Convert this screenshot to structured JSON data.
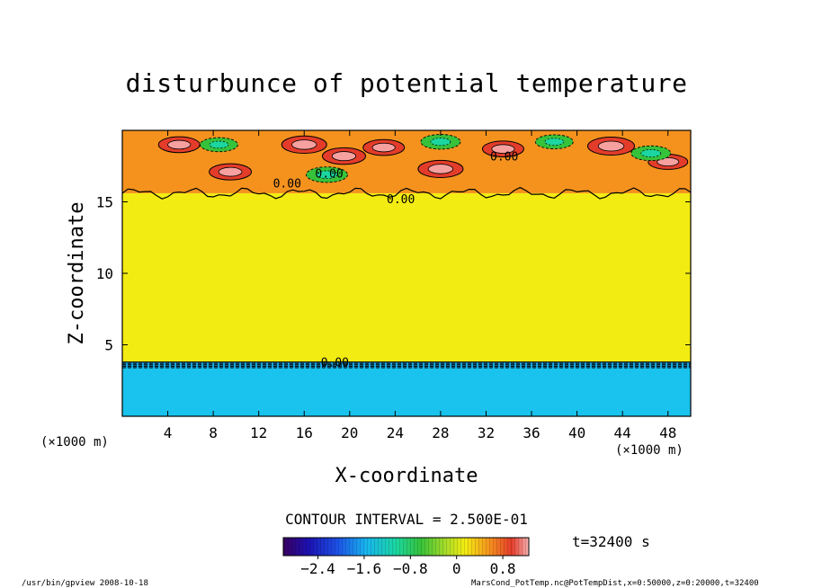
{
  "chart_data": {
    "type": "heatmap",
    "title": "disturbunce of potential temperature",
    "xlabel": "X-coordinate",
    "ylabel": "Z-coordinate",
    "x_unit": "(×1000 m)",
    "y_unit": "(×1000 m)",
    "xlim": [
      0,
      50
    ],
    "ylim": [
      0,
      20
    ],
    "x_ticks": [
      4,
      8,
      12,
      16,
      20,
      24,
      28,
      32,
      36,
      40,
      44,
      48
    ],
    "y_ticks": [
      5,
      10,
      15
    ],
    "contour_interval": "CONTOUR INTERVAL = 2.500E-01",
    "time_label": "t=32400 s",
    "contour_labels": [
      {
        "text": "0.00",
        "x": 33.6,
        "z": 17.9
      },
      {
        "text": "0.00",
        "x": 24.5,
        "z": 14.9
      },
      {
        "text": "0.00",
        "x": 14.5,
        "z": 16.0
      },
      {
        "text": "0.00",
        "x": 18.2,
        "z": 16.7
      },
      {
        "text": "0.00",
        "x": 18.7,
        "z": 3.5
      }
    ],
    "fields": {
      "lower_layer": {
        "z_range": [
          0,
          3.7
        ],
        "value": -1.7
      },
      "interface_z": 3.7,
      "middle_layer": {
        "z_range": [
          3.7,
          15.6
        ],
        "value": 0.1
      },
      "upper_layer": {
        "z_range": [
          15.6,
          20
        ],
        "value": 0.4
      },
      "warm_centers": [
        {
          "x": 5,
          "z": 19.0,
          "value": 0.7
        },
        {
          "x": 9.5,
          "z": 17.1,
          "value": 0.75
        },
        {
          "x": 16,
          "z": 19.0,
          "value": 0.9
        },
        {
          "x": 19.5,
          "z": 18.2,
          "value": 0.8
        },
        {
          "x": 23,
          "z": 18.8,
          "value": 0.7
        },
        {
          "x": 28,
          "z": 17.3,
          "value": 0.9
        },
        {
          "x": 33.5,
          "z": 18.7,
          "value": 0.7
        },
        {
          "x": 43,
          "z": 18.9,
          "value": 1.0
        },
        {
          "x": 48,
          "z": 17.8,
          "value": 0.6
        }
      ],
      "cool_centers": [
        {
          "x": 8.5,
          "z": 19.0,
          "value": -0.7
        },
        {
          "x": 18,
          "z": 16.9,
          "value": -0.9
        },
        {
          "x": 28,
          "z": 19.2,
          "value": -0.8
        },
        {
          "x": 38,
          "z": 19.2,
          "value": -0.7
        },
        {
          "x": 46.5,
          "z": 18.4,
          "value": -0.8
        }
      ]
    },
    "colorbar": {
      "min": -3.0,
      "max": 1.25,
      "ticks": [
        -2.4,
        -1.6,
        -0.8,
        0,
        0.8
      ],
      "tick_labels": [
        "−2.4",
        "−1.6",
        "−0.8",
        "0",
        "0.8"
      ]
    },
    "colors": {
      "lower": "#19c3ee",
      "middle": "#f3ec12",
      "upper": "#f5921e",
      "warm": "#e43c2a",
      "warm_core": "#f7a0a0",
      "cool": "#36c23a",
      "interface": "#1aa0d8"
    },
    "footer_left": "/usr/bin/gpview   2008-10-18",
    "footer_right": "MarsCond_PotTemp.nc@PotTempDist,x=0:50000,z=0:20000,t=32400"
  }
}
